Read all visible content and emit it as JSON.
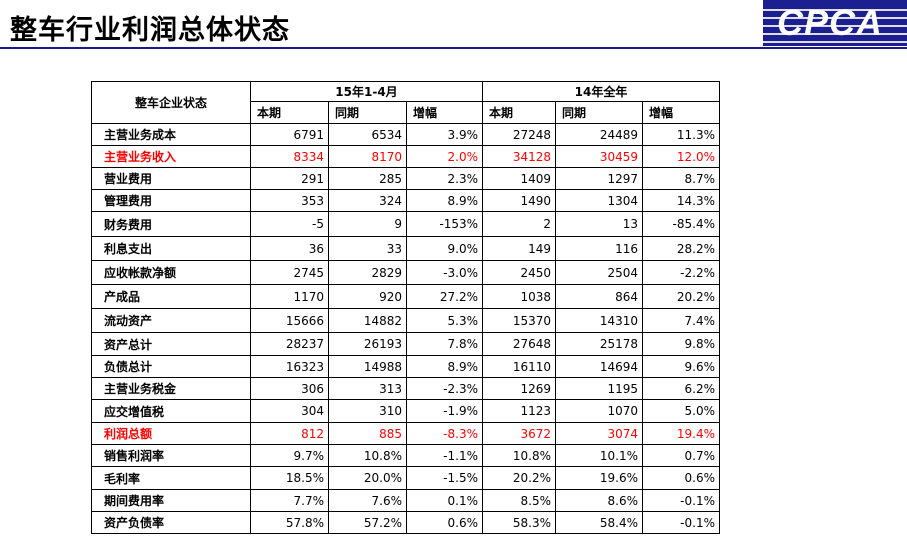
{
  "title": "整车行业利润总体状态",
  "logo_text": "CPCA",
  "colors": {
    "accent": "#1b1f8f",
    "highlight": "#ff0000"
  },
  "table": {
    "row_header": "整车企业状态",
    "group1": "15年1-4月",
    "group2": "14年全年",
    "cols": [
      "本期",
      "同期",
      "增幅",
      "本期",
      "同期",
      "增幅"
    ],
    "rows": [
      {
        "label": "主营业务成本",
        "values": [
          "6791",
          "6534",
          "3.9%",
          "27248",
          "24489",
          "11.3%"
        ],
        "highlight": false
      },
      {
        "label": "主营业务收入",
        "values": [
          "8334",
          "8170",
          "2.0%",
          "34128",
          "30459",
          "12.0%"
        ],
        "highlight": true
      },
      {
        "label": "营业费用",
        "values": [
          "291",
          "285",
          "2.3%",
          "1409",
          "1297",
          "8.7%"
        ],
        "highlight": false
      },
      {
        "label": "管理费用",
        "values": [
          "353",
          "324",
          "8.9%",
          "1490",
          "1304",
          "14.3%"
        ],
        "highlight": false
      },
      {
        "label": "财务费用",
        "values": [
          "-5",
          "9",
          "-153%",
          "2",
          "13",
          "-85.4%"
        ],
        "highlight": false
      },
      {
        "label": "利息支出",
        "values": [
          "36",
          "33",
          "9.0%",
          "149",
          "116",
          "28.2%"
        ],
        "highlight": false
      },
      {
        "label": "应收帐款净额",
        "values": [
          "2745",
          "2829",
          "-3.0%",
          "2450",
          "2504",
          "-2.2%"
        ],
        "highlight": false
      },
      {
        "label": "产成品",
        "values": [
          "1170",
          "920",
          "27.2%",
          "1038",
          "864",
          "20.2%"
        ],
        "highlight": false
      },
      {
        "label": "流动资产",
        "values": [
          "15666",
          "14882",
          "5.3%",
          "15370",
          "14310",
          "7.4%"
        ],
        "highlight": false
      },
      {
        "label": "资产总计",
        "values": [
          "28237",
          "26193",
          "7.8%",
          "27648",
          "25178",
          "9.8%"
        ],
        "highlight": false
      },
      {
        "label": "负债总计",
        "values": [
          "16323",
          "14988",
          "8.9%",
          "16110",
          "14694",
          "9.6%"
        ],
        "highlight": false
      },
      {
        "label": "主营业务税金",
        "values": [
          "306",
          "313",
          "-2.3%",
          "1269",
          "1195",
          "6.2%"
        ],
        "highlight": false
      },
      {
        "label": "应交增值税",
        "values": [
          "304",
          "310",
          "-1.9%",
          "1123",
          "1070",
          "5.0%"
        ],
        "highlight": false
      },
      {
        "label": "利润总额",
        "values": [
          "812",
          "885",
          "-8.3%",
          "3672",
          "3074",
          "19.4%"
        ],
        "highlight": true
      },
      {
        "label": "销售利润率",
        "values": [
          "9.7%",
          "10.8%",
          "-1.1%",
          "10.8%",
          "10.1%",
          "0.7%"
        ],
        "highlight": false
      },
      {
        "label": "毛利率",
        "values": [
          "18.5%",
          "20.0%",
          "-1.5%",
          "20.2%",
          "19.6%",
          "0.6%"
        ],
        "highlight": false
      },
      {
        "label": "期间费用率",
        "values": [
          "7.7%",
          "7.6%",
          "0.1%",
          "8.5%",
          "8.6%",
          "-0.1%"
        ],
        "highlight": false
      },
      {
        "label": "资产负债率",
        "values": [
          "57.8%",
          "57.2%",
          "0.6%",
          "58.3%",
          "58.4%",
          "-0.1%"
        ],
        "highlight": false
      }
    ]
  }
}
